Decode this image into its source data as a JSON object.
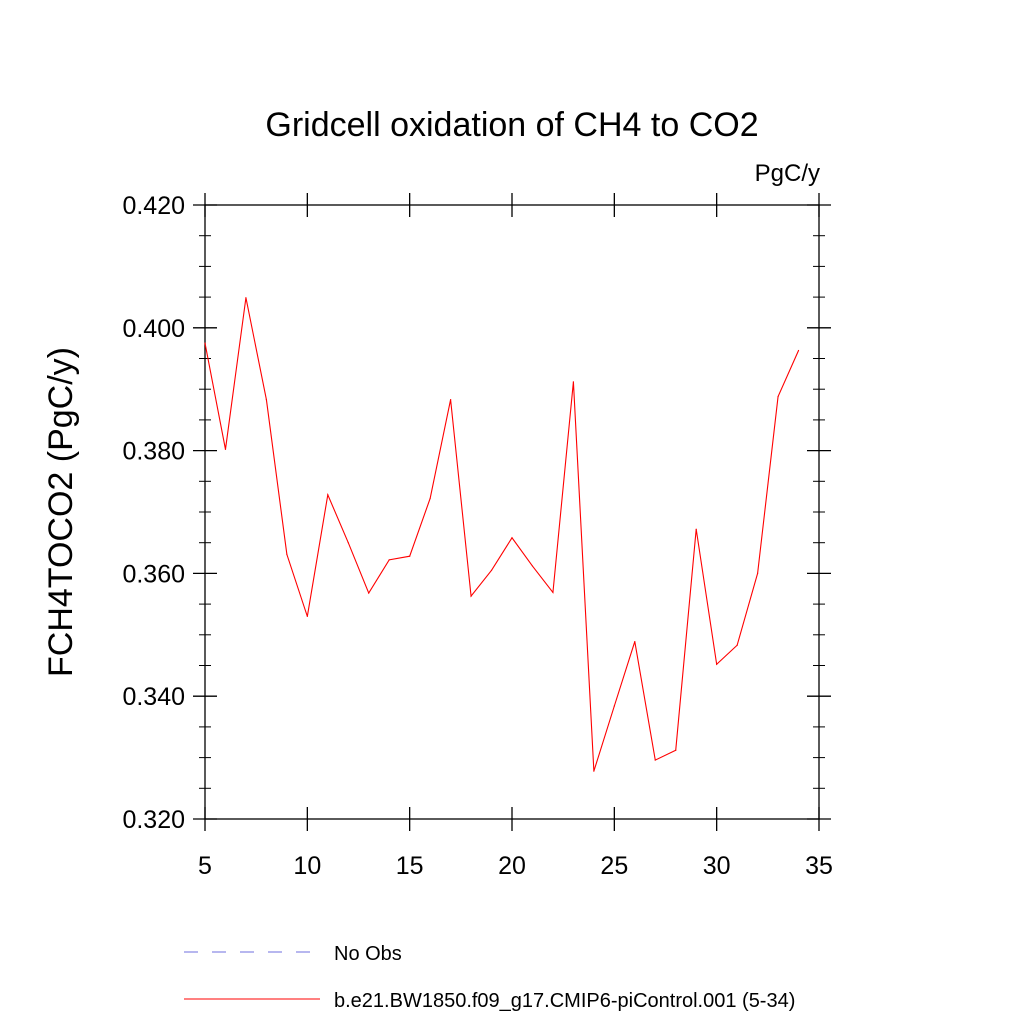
{
  "chart_data": {
    "type": "line",
    "title": "Gridcell oxidation of CH4 to CO2",
    "units_label": "PgC/y",
    "xlabel": "",
    "ylabel": "FCH4TOCO2  (PgC/y)",
    "xlim": [
      5,
      35
    ],
    "ylim": [
      0.32,
      0.42
    ],
    "x_ticks": [
      5,
      10,
      15,
      20,
      25,
      30,
      35
    ],
    "x_tick_labels": [
      "5",
      "10",
      "15",
      "20",
      "25",
      "30",
      "35"
    ],
    "y_ticks": [
      0.32,
      0.34,
      0.36,
      0.38,
      0.4,
      0.42
    ],
    "y_tick_labels": [
      "0.320",
      "0.340",
      "0.360",
      "0.380",
      "0.400",
      "0.420"
    ],
    "grid": false,
    "legend_position": "bottom",
    "series": [
      {
        "name": "b.e21.BW1850.f09_g17.CMIP6-piControl.001 (5-34)",
        "color": "#ff0000",
        "style": "solid",
        "x": [
          5,
          6,
          7,
          8,
          9,
          10,
          11,
          12,
          13,
          14,
          15,
          16,
          17,
          18,
          19,
          20,
          21,
          22,
          23,
          24,
          25,
          26,
          27,
          28,
          29,
          30,
          31,
          32,
          33,
          34
        ],
        "values": [
          0.3975,
          0.3802,
          0.4049,
          0.3883,
          0.3631,
          0.353,
          0.3728,
          0.365,
          0.3568,
          0.3622,
          0.3628,
          0.3722,
          0.3883,
          0.3563,
          0.3605,
          0.3658,
          0.3612,
          0.3569,
          0.3912,
          0.3278,
          0.3384,
          0.3489,
          0.3296,
          0.3312,
          0.3672,
          0.3452,
          0.3483,
          0.36,
          0.3888,
          0.3963
        ]
      },
      {
        "name": "No Obs",
        "color": "#6f6fdf",
        "style": "dashed",
        "x": [],
        "values": []
      }
    ],
    "legend": [
      {
        "label": "No Obs",
        "color": "#6f6fdf",
        "style": "dashed"
      },
      {
        "label": "b.e21.BW1850.f09_g17.CMIP6-piControl.001 (5-34)",
        "color": "#ff0000",
        "style": "solid"
      }
    ]
  }
}
